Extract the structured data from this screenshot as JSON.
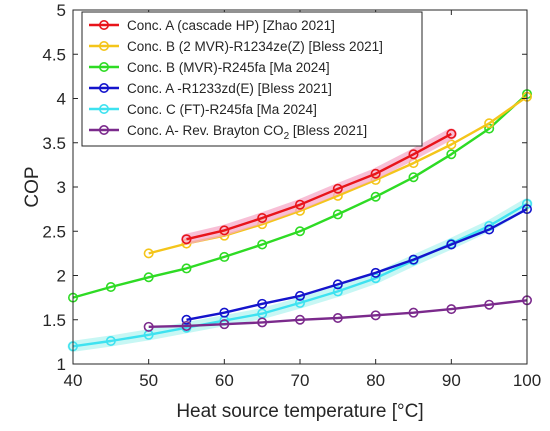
{
  "chart_data": {
    "type": "line",
    "xlabel": "Heat source temperature [°C]",
    "ylabel": "COP",
    "xlim": [
      40,
      100
    ],
    "ylim": [
      1,
      5
    ],
    "xticks": [
      40,
      50,
      60,
      70,
      80,
      90,
      100
    ],
    "yticks": [
      1,
      1.5,
      2,
      2.5,
      3,
      3.5,
      4,
      4.5,
      5
    ],
    "grid": false,
    "legend_placement": "top-left",
    "series": [
      {
        "name": "Conc. A (cascade HP) [Zhao 2021]",
        "color": "#e8141a",
        "shadow": "#f6a9c8",
        "x": [
          55,
          60,
          65,
          70,
          75,
          80,
          85,
          90
        ],
        "y": [
          2.41,
          2.51,
          2.65,
          2.8,
          2.98,
          3.15,
          3.37,
          3.6
        ]
      },
      {
        "name": "Conc. B (2 MVR)-R1234ze(Z) [Bless 2021]",
        "color": "#f4c51a",
        "shadow": "",
        "x": [
          50,
          55,
          60,
          65,
          70,
          75,
          80,
          85,
          90,
          95,
          100
        ],
        "y": [
          2.25,
          2.36,
          2.45,
          2.58,
          2.73,
          2.9,
          3.08,
          3.27,
          3.48,
          3.72,
          4.02
        ]
      },
      {
        "name": "Conc. B (MVR)-R245fa [Ma 2024]",
        "color": "#2edb24",
        "shadow": "",
        "x": [
          40,
          45,
          50,
          55,
          60,
          65,
          70,
          75,
          80,
          85,
          90,
          95,
          100
        ],
        "y": [
          1.75,
          1.87,
          1.98,
          2.08,
          2.21,
          2.35,
          2.5,
          2.69,
          2.89,
          3.11,
          3.37,
          3.66,
          4.05
        ]
      },
      {
        "name": "Conc. A -R1233zd(E) [Bless 2021]",
        "color": "#1414cc",
        "shadow": "",
        "x": [
          55,
          60,
          65,
          70,
          75,
          80,
          85,
          90,
          95,
          100
        ],
        "y": [
          1.5,
          1.58,
          1.68,
          1.77,
          1.9,
          2.03,
          2.18,
          2.35,
          2.52,
          2.75
        ]
      },
      {
        "name": "Conc. C (FT)-R245fa [Ma 2024]",
        "color": "#3ee2f0",
        "shadow": "#b4f4f0",
        "x": [
          40,
          45,
          50,
          55,
          60,
          65,
          70,
          75,
          80,
          85,
          90,
          95,
          100
        ],
        "y": [
          1.2,
          1.26,
          1.33,
          1.41,
          1.49,
          1.57,
          1.69,
          1.82,
          1.97,
          2.17,
          2.36,
          2.56,
          2.81
        ]
      },
      {
        "name": "Conc. A- Rev. Brayton CO",
        "name_subscript": "2",
        "name_suffix": " [Bless 2021]",
        "color": "#7b2a8c",
        "shadow": "",
        "x": [
          50,
          55,
          60,
          65,
          70,
          75,
          80,
          85,
          90,
          95,
          100
        ],
        "y": [
          1.42,
          1.43,
          1.45,
          1.47,
          1.5,
          1.52,
          1.55,
          1.58,
          1.62,
          1.67,
          1.72
        ]
      }
    ]
  }
}
